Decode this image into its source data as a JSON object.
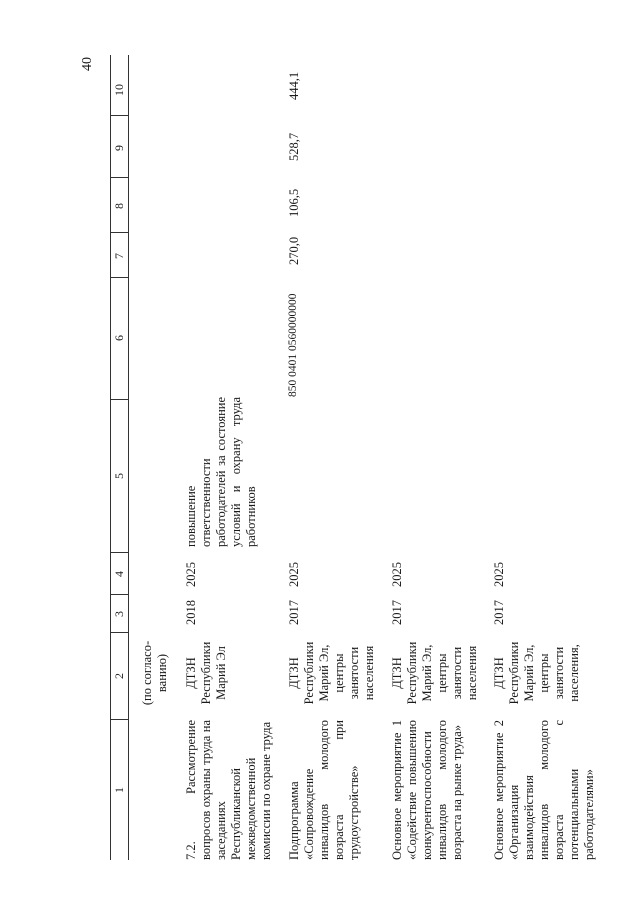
{
  "page_number": "40",
  "column_numbers": [
    "1",
    "2",
    "3",
    "4",
    "5",
    "6",
    "7",
    "8",
    "9",
    "10"
  ],
  "rows": [
    {
      "col1": "",
      "col2": "(по согласо- ванию)",
      "col3": "",
      "col4": "",
      "col5": "",
      "col6": "",
      "col7": "",
      "col8": "",
      "col9": "",
      "col10": ""
    },
    {
      "col1": "7.2. Рассмотрение вопросов охраны труда на заседаниях Республиканской межведомственной комиссии по охране труда",
      "col2": "ДТЗН Республики Марий Эл",
      "col3": "2018",
      "col4": "2025",
      "col5": "повышение ответственности работодателей за состояние условий и охрану труда работников",
      "col6": "",
      "col7": "",
      "col8": "",
      "col9": "",
      "col10": ""
    },
    {
      "col1": "Подпрограмма «Сопровождение инвалидов молодого возраста при трудоустройстве»",
      "col2": "ДТЗН Республики Марий Эл, центры занятости населения",
      "col3": "2017",
      "col4": "2025",
      "col5": "",
      "col6": "850 0401 0560000000",
      "col7": "270,0",
      "col8": "106,5",
      "col9": "528,7",
      "col10": "444,1"
    },
    {
      "col1": "Основное мероприятие 1 «Содействие повышению конкурентоспособности инвалидов молодого возраста на рынке труда»",
      "col2": "ДТЗН Республики Марий Эл, центры занятости населения",
      "col3": "2017",
      "col4": "2025",
      "col5": "",
      "col6": "",
      "col7": "",
      "col8": "",
      "col9": "",
      "col10": ""
    },
    {
      "col1": "Основное мероприятие 2 «Организация взаимодействия инвалидов молодого возраста с потенциальными работодателями»",
      "col2": "ДТЗН Республики Марий Эл, центры занятости населения,",
      "col3": "2017",
      "col4": "2025",
      "col5": "",
      "col6": "",
      "col7": "",
      "col8": "",
      "col9": "",
      "col10": ""
    }
  ]
}
